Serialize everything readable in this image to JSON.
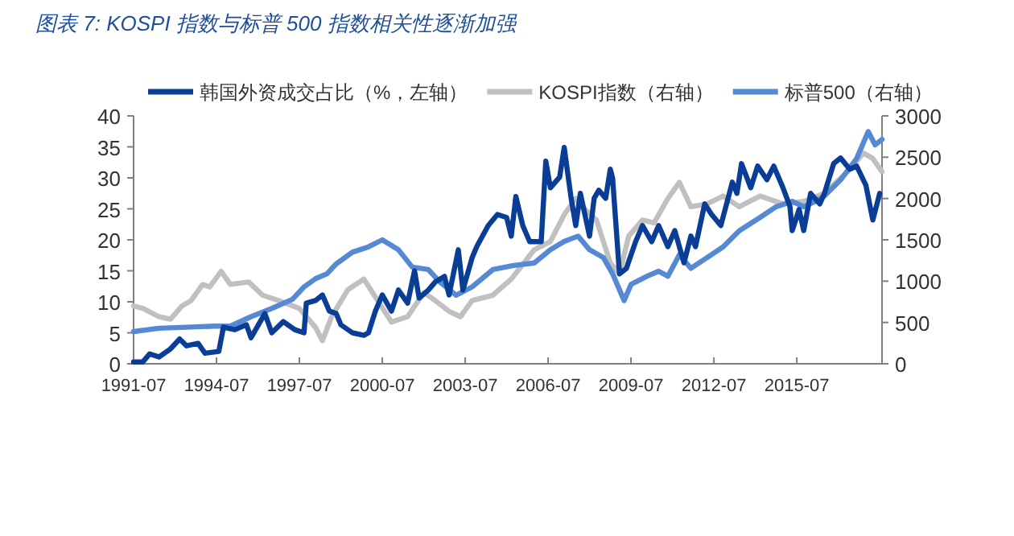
{
  "chart_data": {
    "type": "line",
    "title": "图表 7: KOSPI 指数与标普 500 指数相关性逐渐加强",
    "legend": "top",
    "grid": false,
    "marker": "none",
    "line_style": "solid",
    "xlim": [
      "1991-07",
      "2018-08"
    ],
    "xticks": [
      "1991-07",
      "1994-07",
      "1997-07",
      "2000-07",
      "2003-07",
      "2006-07",
      "2009-07",
      "2012-07",
      "2015-07"
    ],
    "ylim": [
      0,
      40
    ],
    "yticks": [
      0,
      5,
      10,
      15,
      20,
      25,
      30,
      35,
      40
    ],
    "y2lim": [
      0,
      3000
    ],
    "y2ticks": [
      0,
      500,
      1000,
      1500,
      2000,
      2500,
      3000
    ],
    "series": [
      {
        "name": "韩国外资成交占比（%，左轴）",
        "color": "#0a3d96",
        "axis": "y",
        "x": [
          "1991-07",
          "1991-11",
          "1992-02",
          "1992-06",
          "1992-11",
          "1993-03",
          "1993-06",
          "1993-11",
          "1994-02",
          "1994-08",
          "1994-10",
          "1995-03",
          "1995-08",
          "1995-10",
          "1996-04",
          "1996-07",
          "1996-12",
          "1997-05",
          "1997-09",
          "1997-10",
          "1998-02",
          "1998-05",
          "1998-08",
          "1998-11",
          "1999-01",
          "1999-06",
          "1999-11",
          "2000-01",
          "2000-04",
          "2000-07",
          "2000-11",
          "2001-02",
          "2001-06",
          "2001-09",
          "2001-11",
          "2002-03",
          "2002-06",
          "2002-10",
          "2002-12",
          "2003-04",
          "2003-06",
          "2003-10",
          "2003-12",
          "2004-05",
          "2004-09",
          "2005-01",
          "2005-03",
          "2005-05",
          "2005-08",
          "2005-11",
          "2006-04",
          "2006-06",
          "2006-08",
          "2006-12",
          "2007-02",
          "2007-05",
          "2007-07",
          "2007-09",
          "2008-01",
          "2008-03",
          "2008-05",
          "2008-08",
          "2008-10",
          "2008-11",
          "2009-02",
          "2009-05",
          "2009-09",
          "2009-12",
          "2010-04",
          "2010-07",
          "2010-11",
          "2011-02",
          "2011-06",
          "2011-09",
          "2011-11",
          "2012-03",
          "2012-06",
          "2012-10",
          "2013-03",
          "2013-05",
          "2013-07",
          "2013-11",
          "2014-02",
          "2014-06",
          "2014-09",
          "2015-01",
          "2015-04",
          "2015-05",
          "2015-08",
          "2015-10",
          "2016-01",
          "2016-05",
          "2016-07",
          "2016-11",
          "2017-02",
          "2017-06",
          "2017-09",
          "2018-01",
          "2018-04",
          "2018-07"
        ],
        "values": [
          0.3,
          0.3,
          1.6,
          1.1,
          2.4,
          4,
          2.9,
          3.3,
          1.7,
          2,
          5.9,
          5.5,
          6.3,
          4.2,
          8.1,
          5,
          6.8,
          5.5,
          5,
          9.8,
          10.2,
          11.1,
          8.5,
          8.1,
          6.3,
          5,
          4.6,
          5,
          8.5,
          11.1,
          8.5,
          11.9,
          9.8,
          15,
          10.6,
          11.9,
          13.2,
          14.1,
          11.1,
          18.4,
          11.9,
          17.1,
          18.9,
          22.3,
          24.1,
          23.6,
          20.6,
          27,
          22.3,
          19.7,
          19.7,
          32.7,
          28.4,
          30.1,
          34.9,
          26.7,
          22.3,
          27.5,
          20.6,
          26.7,
          28,
          26.7,
          31.4,
          30,
          14.5,
          15.4,
          19.7,
          22.3,
          19.7,
          22.3,
          18.9,
          21.5,
          16.3,
          20.6,
          18.9,
          25.8,
          24.1,
          22.3,
          29.3,
          27.5,
          32.3,
          28.4,
          31.9,
          29.7,
          31.9,
          28.4,
          25.4,
          21.5,
          24.9,
          21.5,
          27.5,
          25.8,
          27.5,
          32.3,
          33.2,
          31.4,
          31.9,
          28.8,
          23.2,
          27.5
        ]
      },
      {
        "name": "KOSPI指数（右轴）",
        "color": "#c0c0c0",
        "axis": "y2",
        "x": [
          "1991-07",
          "1991-11",
          "1992-06",
          "1992-11",
          "1993-04",
          "1993-08",
          "1994-01",
          "1994-04",
          "1994-09",
          "1995-01",
          "1995-09",
          "1996-03",
          "1996-10",
          "1997-07",
          "1998-02",
          "1998-05",
          "1998-09",
          "1999-04",
          "1999-11",
          "2000-05",
          "2000-11",
          "2001-06",
          "2002-01",
          "2002-06",
          "2002-12",
          "2003-05",
          "2003-10",
          "2004-07",
          "2005-03",
          "2006-01",
          "2006-08",
          "2007-02",
          "2007-07",
          "2007-11",
          "2008-04",
          "2008-10",
          "2009-02",
          "2009-06",
          "2009-12",
          "2010-05",
          "2010-11",
          "2011-04",
          "2011-09",
          "2012-04",
          "2012-11",
          "2013-06",
          "2014-03",
          "2015-01",
          "2015-10",
          "2016-07",
          "2017-05",
          "2017-12",
          "2018-04",
          "2018-08"
        ],
        "values": [
          700,
          670,
          570,
          540,
          700,
          765,
          960,
          930,
          1120,
          960,
          990,
          830,
          765,
          670,
          440,
          280,
          570,
          895,
          1025,
          765,
          505,
          570,
          860,
          765,
          635,
          570,
          765,
          830,
          1025,
          1380,
          1480,
          1805,
          2000,
          1870,
          1740,
          1220,
          1090,
          1545,
          1740,
          1705,
          2000,
          2195,
          1900,
          1935,
          2030,
          1900,
          2030,
          1935,
          1965,
          2065,
          2325,
          2550,
          2485,
          2325
        ]
      },
      {
        "name": "标普500（右轴）",
        "color": "#5689d3",
        "axis": "y2",
        "x": [
          "1991-07",
          "1992-06",
          "1994-06",
          "1995-01",
          "1995-10",
          "1996-07",
          "1997-04",
          "1997-09",
          "1998-02",
          "1998-07",
          "1998-11",
          "1999-06",
          "2000-01",
          "2000-07",
          "2001-02",
          "2001-08",
          "2002-03",
          "2002-08",
          "2003-03",
          "2003-10",
          "2004-07",
          "2005-04",
          "2006-01",
          "2006-08",
          "2007-02",
          "2007-08",
          "2008-01",
          "2008-07",
          "2008-11",
          "2009-02",
          "2009-04",
          "2009-07",
          "2010-02",
          "2010-07",
          "2010-11",
          "2011-04",
          "2011-09",
          "2012-04",
          "2012-11",
          "2013-06",
          "2014-03",
          "2014-10",
          "2015-05",
          "2015-10",
          "2016-03",
          "2016-07",
          "2017-02",
          "2017-09",
          "2018-02",
          "2018-05",
          "2018-08"
        ],
        "values": [
          390,
          430,
          455,
          455,
          570,
          670,
          780,
          930,
          1030,
          1090,
          1210,
          1350,
          1415,
          1500,
          1380,
          1170,
          1140,
          990,
          830,
          930,
          1140,
          1190,
          1220,
          1380,
          1480,
          1545,
          1380,
          1285,
          1090,
          895,
          765,
          960,
          1060,
          1120,
          1060,
          1320,
          1155,
          1285,
          1415,
          1610,
          1770,
          1900,
          1965,
          1900,
          1965,
          2030,
          2225,
          2485,
          2810,
          2650,
          2715
        ]
      }
    ]
  }
}
